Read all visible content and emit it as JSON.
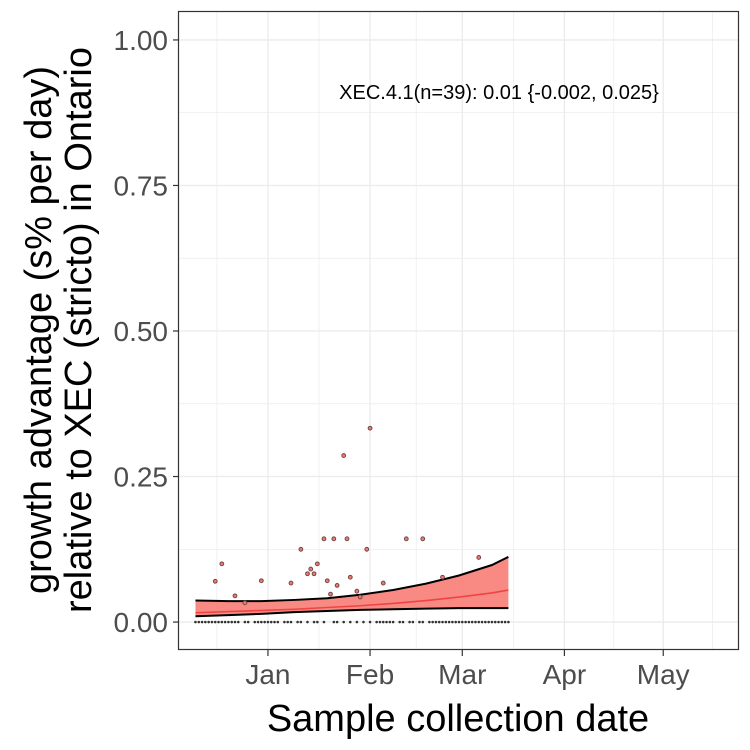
{
  "chart_data": {
    "type": "scatter",
    "xlabel": "Sample collection date",
    "ylabel": "growth advantage (s% per day)",
    "ylabel2": "relative to XEC (stricto) in Ontario",
    "annotation": "XEC.4.1(n=39): 0.01 {-0.002, 0.025}",
    "x_ticks": [
      "Jan",
      "Feb",
      "Mar",
      "Apr",
      "May"
    ],
    "x_tick_dates": [
      "2025-01-01",
      "2025-02-01",
      "2025-03-01",
      "2025-04-01",
      "2025-05-01"
    ],
    "x_range": [
      "2024-12-05",
      "2025-05-24"
    ],
    "y_ticks": [
      "0.00",
      "0.25",
      "0.50",
      "0.75",
      "1.00"
    ],
    "y_tick_values": [
      0,
      0.25,
      0.5,
      0.75,
      1.0
    ],
    "y_range": [
      -0.048,
      1.048
    ],
    "grid": true,
    "colors": {
      "ribbon": "#f8766d",
      "fit": "#ee4444",
      "bounds": "#000000",
      "points": "#6b4a4a",
      "grid": "#ebebeb",
      "panel_border": "#333333"
    },
    "points": [
      {
        "x": "2024-12-16",
        "y": 0.07
      },
      {
        "x": "2024-12-18",
        "y": 0.1
      },
      {
        "x": "2024-12-22",
        "y": 0.045
      },
      {
        "x": "2024-12-25",
        "y": 0.033
      },
      {
        "x": "2024-12-30",
        "y": 0.071
      },
      {
        "x": "2025-01-08",
        "y": 0.067
      },
      {
        "x": "2025-01-11",
        "y": 0.125
      },
      {
        "x": "2025-01-13",
        "y": 0.083
      },
      {
        "x": "2025-01-14",
        "y": 0.091
      },
      {
        "x": "2025-01-15",
        "y": 0.083
      },
      {
        "x": "2025-01-16",
        "y": 0.1
      },
      {
        "x": "2025-01-18",
        "y": 0.143
      },
      {
        "x": "2025-01-19",
        "y": 0.071
      },
      {
        "x": "2025-01-20",
        "y": 0.048
      },
      {
        "x": "2025-01-21",
        "y": 0.143
      },
      {
        "x": "2025-01-22",
        "y": 0.063
      },
      {
        "x": "2025-01-24",
        "y": 0.286
      },
      {
        "x": "2025-01-25",
        "y": 0.143
      },
      {
        "x": "2025-01-26",
        "y": 0.077
      },
      {
        "x": "2025-01-28",
        "y": 0.053
      },
      {
        "x": "2025-01-29",
        "y": 0.043
      },
      {
        "x": "2025-01-31",
        "y": 0.125
      },
      {
        "x": "2025-02-01",
        "y": 0.333
      },
      {
        "x": "2025-02-05",
        "y": 0.067
      },
      {
        "x": "2025-02-12",
        "y": 0.143
      },
      {
        "x": "2025-02-17",
        "y": 0.143
      },
      {
        "x": "2025-02-23",
        "y": 0.077
      },
      {
        "x": "2025-03-06",
        "y": 0.111
      }
    ],
    "zero_points": {
      "from": "2024-12-10",
      "to": "2025-03-15",
      "missing": [
        "2024-12-24",
        "2024-12-27",
        "2025-01-05",
        "2025-01-09",
        "2025-01-12",
        "2025-01-14",
        "2025-01-17",
        "2025-01-19",
        "2025-01-20",
        "2025-01-23",
        "2025-01-25",
        "2025-01-27",
        "2025-01-29",
        "2025-01-31",
        "2025-02-02",
        "2025-02-09",
        "2025-02-12",
        "2025-02-15",
        "2025-02-18"
      ]
    },
    "fit_x": [
      "2024-12-10",
      "2024-12-20",
      "2024-12-30",
      "2025-01-09",
      "2025-01-19",
      "2025-01-29",
      "2025-02-08",
      "2025-02-18",
      "2025-02-28",
      "2025-03-10",
      "2025-03-15"
    ],
    "fit": [
      0.016,
      0.018,
      0.02,
      0.022,
      0.025,
      0.028,
      0.032,
      0.037,
      0.043,
      0.05,
      0.055
    ],
    "fit_lower": [
      0.01,
      0.012,
      0.014,
      0.017,
      0.019,
      0.021,
      0.022,
      0.023,
      0.024,
      0.024,
      0.024
    ],
    "fit_upper": [
      0.037,
      0.036,
      0.036,
      0.038,
      0.041,
      0.047,
      0.055,
      0.066,
      0.08,
      0.098,
      0.112
    ]
  }
}
